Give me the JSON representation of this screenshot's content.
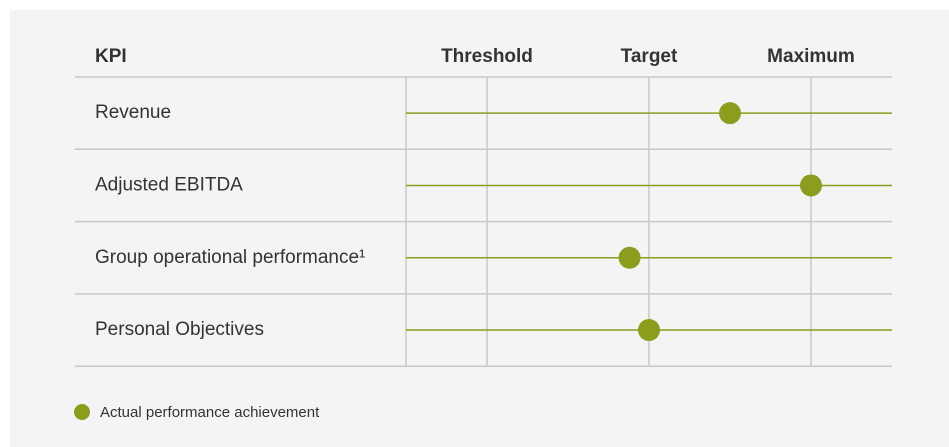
{
  "chart_data": {
    "type": "dot",
    "category_header": "KPI",
    "categories": [
      "Revenue",
      "Adjusted EBITDA",
      "Group operational performance¹",
      "Personal Objectives"
    ],
    "series": [
      {
        "name": "Actual performance achievement",
        "color": "#8c9c1c",
        "values": [
          1.5,
          2.0,
          0.88,
          1.0
        ]
      }
    ],
    "xlim": [
      -0.5,
      2.5
    ],
    "xticks": [
      {
        "value": 0,
        "label": "Threshold"
      },
      {
        "value": 1,
        "label": "Target"
      },
      {
        "value": 2,
        "label": "Maximum"
      }
    ],
    "grid": true
  }
}
